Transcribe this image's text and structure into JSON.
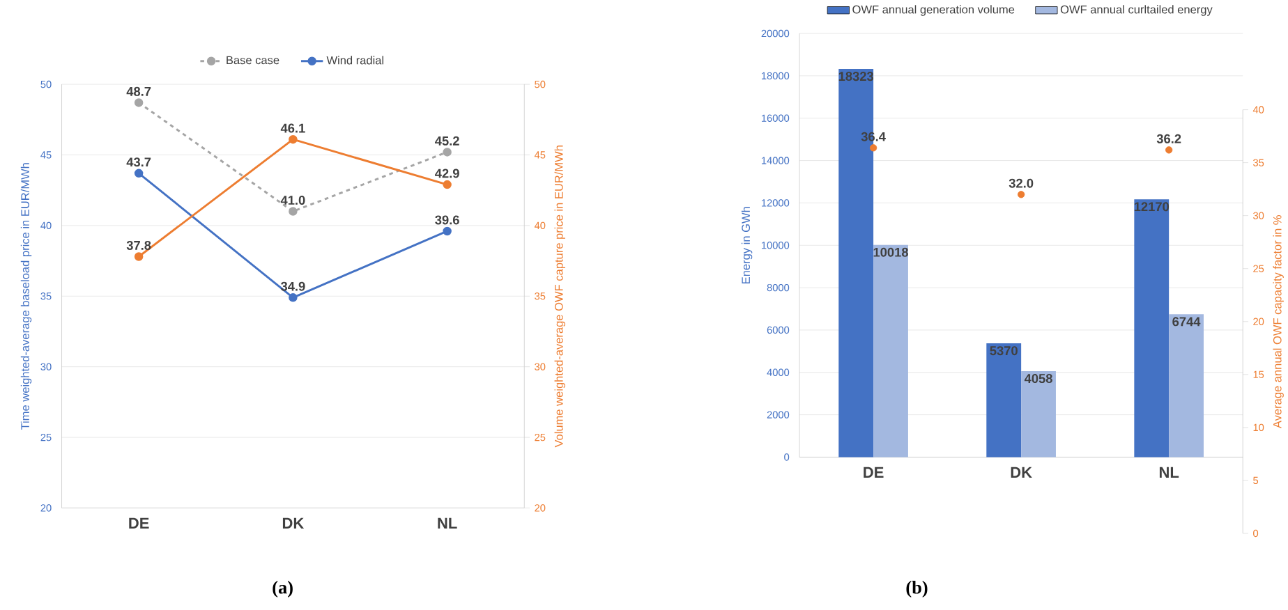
{
  "chart_data": [
    {
      "type": "line",
      "categories": [
        "DE",
        "DK",
        "NL"
      ],
      "ylabel": "Time weighted-average baseload price in EUR/MWh",
      "y2label": "Volume weighted-average OWF capture price in EUR/MWh",
      "ylim": [
        20,
        50
      ],
      "yticks": [
        20,
        25,
        30,
        35,
        40,
        45,
        50
      ],
      "y2lim": [
        20,
        50
      ],
      "y2ticks": [
        20,
        25,
        30,
        35,
        40,
        45,
        50
      ],
      "grid": "y",
      "legend": "top",
      "marker": "circle",
      "annotations": [
        "(a)"
      ],
      "series": [
        {
          "name": "Base case",
          "color": "#a5a5a5",
          "line_style": "dashed",
          "values": [
            48.7,
            41.0,
            45.2
          ],
          "value_labels": [
            "48.7",
            "41.0",
            "45.2"
          ]
        },
        {
          "name": "Wind radial",
          "color": "#4472c4",
          "values": [
            43.7,
            34.9,
            39.6
          ],
          "value_labels": [
            "43.7",
            "34.9",
            "39.6"
          ]
        },
        {
          "color": "#ed7d31",
          "axis": "y2",
          "values": [
            37.8,
            46.1,
            42.9
          ],
          "value_labels": [
            "37.8",
            "46.1",
            "42.9"
          ]
        }
      ]
    },
    {
      "type": "bar",
      "categories": [
        "DE",
        "DK",
        "NL"
      ],
      "ylabel": "Energy in GWh",
      "y2label": "Average annual OWF capacity factor in %",
      "ylim": [
        0,
        20000
      ],
      "yticks": [
        0,
        2000,
        4000,
        6000,
        8000,
        10000,
        12000,
        14000,
        16000,
        18000,
        20000
      ],
      "y2lim": [
        0,
        40
      ],
      "y2ticks": [
        0,
        5,
        10,
        15,
        20,
        25,
        30,
        35,
        40
      ],
      "grid": "y",
      "legend": "top",
      "marker": "circle",
      "annotations": [
        "(b)"
      ],
      "series": [
        {
          "name": "OWF annual generation volume",
          "color": "#4472c4",
          "values": [
            18323,
            5370,
            12170
          ],
          "value_labels": [
            "18323",
            "5370",
            "12170"
          ]
        },
        {
          "name": "OWF annual curltailed energy",
          "color": "#a3b8e0",
          "values": [
            10018,
            4058,
            6744
          ],
          "value_labels": [
            "10018",
            "4058",
            "6744"
          ]
        },
        {
          "type": "scatter",
          "color": "#ed7d31",
          "axis": "y2",
          "values": [
            36.4,
            32.0,
            36.2
          ],
          "value_labels": [
            "36.4",
            "32.0",
            "36.2"
          ]
        }
      ]
    }
  ]
}
